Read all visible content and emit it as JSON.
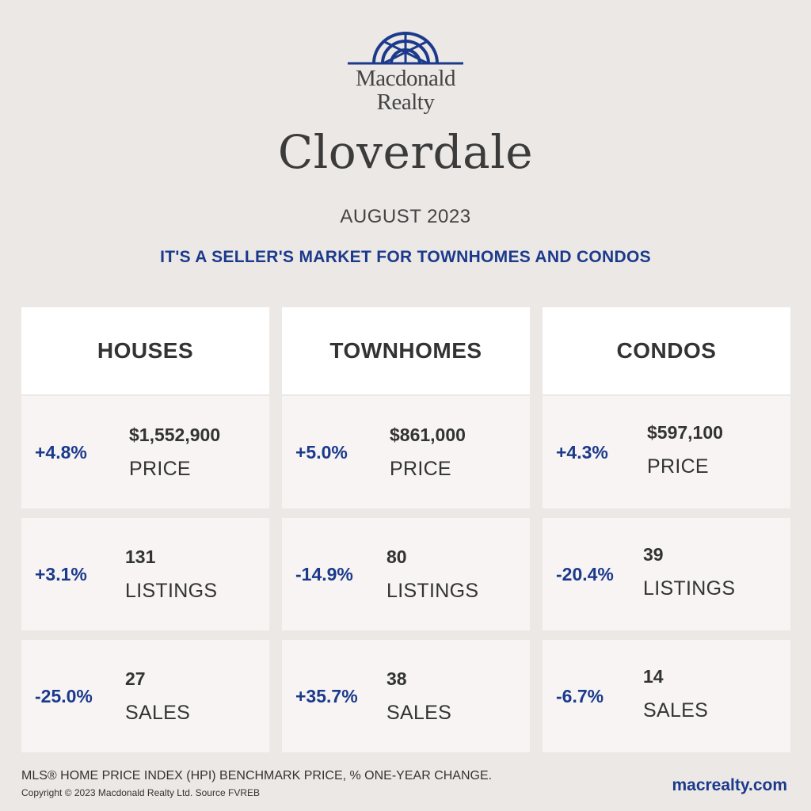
{
  "brand": {
    "line1": "Macdonald",
    "line2": "Realty",
    "logo_color": "#1b3a8c"
  },
  "city": "Cloverdale",
  "period": "AUGUST 2023",
  "headline": "IT'S A SELLER'S MARKET FOR TOWNHOMES AND CONDOS",
  "columns": [
    {
      "title": "HOUSES",
      "price": {
        "change": "+4.8%",
        "value": "$1,552,900",
        "label": "PRICE"
      },
      "listings": {
        "change": "+3.1%",
        "value": "131",
        "label": "LISTINGS"
      },
      "sales": {
        "change": "-25.0%",
        "value": "27",
        "label": "SALES"
      }
    },
    {
      "title": "TOWNHOMES",
      "price": {
        "change": "+5.0%",
        "value": "$861,000",
        "label": "PRICE"
      },
      "listings": {
        "change": "-14.9%",
        "value": "80",
        "label": "LISTINGS"
      },
      "sales": {
        "change": "+35.7%",
        "value": "38",
        "label": "SALES"
      }
    },
    {
      "title": "CONDOS",
      "price": {
        "change": "+4.3%",
        "value": "$597,100",
        "label": "PRICE"
      },
      "listings": {
        "change": "-20.4%",
        "value": "39",
        "label": "LISTINGS"
      },
      "sales": {
        "change": "-6.7%",
        "value": "14",
        "label": "SALES"
      }
    }
  ],
  "footer": {
    "note": "MLS® HOME PRICE INDEX (HPI) BENCHMARK PRICE, % ONE-YEAR CHANGE.",
    "copyright": "Copyright © 2023 Macdonald Realty Ltd. Source FVREB",
    "website": "macrealty.com"
  },
  "colors": {
    "accent": "#1b3a8c",
    "background": "#ece8e5",
    "card": "#f7f4f3",
    "header": "#ffffff"
  }
}
